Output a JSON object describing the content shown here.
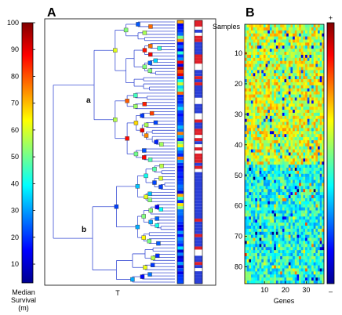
{
  "panels": {
    "a": {
      "label": "A"
    },
    "b": {
      "label": "B"
    }
  },
  "colorbar_left": {
    "ticks": [
      "100",
      "90",
      "80",
      "70",
      "60",
      "50",
      "40",
      "30",
      "20",
      "10"
    ],
    "label_lines": [
      "Median",
      "Survival",
      "(m)"
    ]
  },
  "colorbar_right": {
    "top_label": "+",
    "bottom_label": "–"
  },
  "tree": {
    "clade_a_label": "a",
    "clade_b_label": "b",
    "xlabel": "T"
  },
  "chart_data": [
    {
      "type": "dendrogram",
      "panel": "A",
      "xlabel": "T",
      "annotations": [
        "a",
        "b"
      ],
      "leaf_count": 85,
      "note_colorbar": {
        "label": "Median Survival (m)",
        "range": [
          3,
          100
        ],
        "ticks": [
          10,
          20,
          30,
          40,
          50,
          60,
          70,
          80,
          90,
          100
        ]
      }
    },
    {
      "type": "heatmap",
      "panel": "B",
      "xlabel": "Genes",
      "ylabel": "Samples",
      "rows": 85,
      "cols": 38,
      "x_ticks": [
        10,
        20,
        30
      ],
      "y_ticks": [
        10,
        20,
        30,
        40,
        50,
        60,
        70,
        80
      ],
      "colorscale_labels": [
        "+",
        "–"
      ],
      "structure": "rows 1-46 predominantly high (yellow/orange/red); rows 47-85 predominantly low (cyan/green/blue)"
    }
  ],
  "colors": {
    "tree_line": "#3b4fd4",
    "jet": [
      "#00008f",
      "#0000ff",
      "#0080ff",
      "#00ffff",
      "#80ff80",
      "#ffff00",
      "#ff8000",
      "#ff0000",
      "#800000"
    ]
  }
}
